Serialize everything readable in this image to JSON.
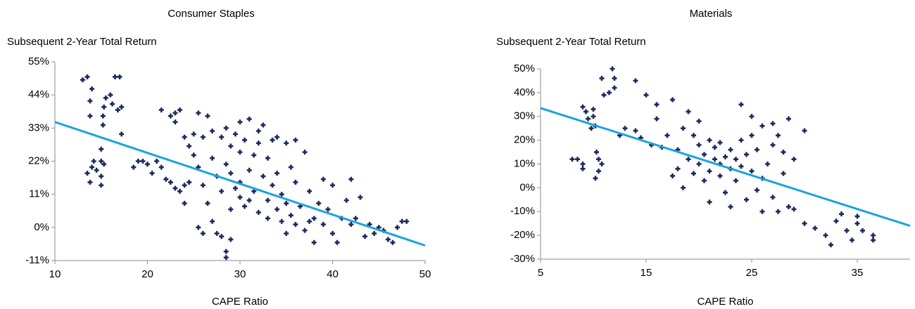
{
  "chart_data": [
    {
      "type": "scatter",
      "title": "Consumer Staples",
      "y_label": "Subsequent 2-Year Total Return",
      "x_label": "CAPE Ratio",
      "color": "#1b2a5c",
      "x": [
        13,
        13.5,
        14,
        13.8,
        13.8,
        14,
        13.5,
        13.8,
        14.5,
        15,
        15,
        15,
        15,
        15.2,
        15.2,
        15.3,
        15.5,
        16,
        16.2,
        16.5,
        17,
        16.8,
        17.2,
        17.2,
        14.2,
        15.3,
        18.5,
        19,
        19.5,
        20,
        20.5,
        21,
        21.5,
        21.5,
        22,
        22.5,
        22.5,
        23,
        23,
        23,
        23.5,
        23.5,
        24,
        24,
        24,
        24.5,
        24.5,
        25,
        25,
        25.5,
        25.5,
        25.5,
        26,
        26,
        26,
        26.5,
        26.5,
        27,
        27,
        27,
        27.5,
        27.5,
        28,
        28,
        28,
        28.5,
        28.5,
        28.5,
        28.5,
        29,
        29,
        29,
        29,
        29.5,
        29.5,
        30,
        30,
        30,
        30,
        30.5,
        30.5,
        31,
        31,
        31,
        31.5,
        31.5,
        32,
        32,
        32,
        32.5,
        32.5,
        33,
        33,
        33,
        33.5,
        33.5,
        34,
        34,
        34,
        34.5,
        34.5,
        35,
        35,
        35,
        35.5,
        35.5,
        36,
        36,
        36,
        36.5,
        37,
        37,
        37.5,
        37.5,
        38,
        38,
        38.5,
        39,
        39,
        39.5,
        40,
        40,
        40.5,
        41,
        41.5,
        42,
        42,
        42.5,
        43,
        43.5,
        44,
        44.5,
        45,
        45.5,
        46,
        47,
        47.5,
        48,
        46.5
      ],
      "y": [
        49,
        50,
        46,
        42,
        37,
        20,
        18,
        15,
        19,
        26,
        22,
        17,
        14,
        34,
        37,
        40,
        43,
        44,
        41,
        50,
        50,
        39,
        40,
        31,
        22,
        21,
        20,
        22,
        22,
        21,
        18,
        22,
        39,
        20,
        16,
        15,
        37,
        35,
        13,
        38,
        39,
        12,
        14,
        30,
        8,
        27,
        15,
        24,
        31,
        38,
        20,
        0,
        -2,
        14,
        30,
        37,
        8,
        2,
        23,
        32,
        17,
        -2,
        12,
        -3,
        30,
        -8,
        -10,
        21,
        33,
        6,
        18,
        27,
        -4,
        13,
        31,
        10,
        15,
        25,
        35,
        7,
        29,
        19,
        9,
        36,
        24,
        12,
        28,
        5,
        32,
        17,
        34,
        23,
        3,
        9,
        29,
        14,
        6,
        18,
        30,
        2,
        11,
        8,
        28,
        -2,
        4,
        20,
        15,
        1,
        29,
        7,
        25,
        -1,
        2,
        12,
        3,
        -5,
        8,
        1,
        16,
        6,
        -2,
        14,
        -5,
        3,
        9,
        16,
        1,
        3,
        10,
        -3,
        1,
        -2,
        0,
        -1,
        -4,
        0,
        2,
        2,
        -5
      ],
      "trendline": {
        "color": "#1aa3dc",
        "x": [
          10,
          50
        ],
        "y": [
          35,
          -6
        ]
      },
      "xlim": [
        10,
        50
      ],
      "ylim": [
        -11,
        55
      ],
      "xticks": [
        10,
        20,
        30,
        40,
        50
      ],
      "yticks": [
        {
          "value": -11,
          "label": "-11%"
        },
        {
          "value": 0,
          "label": "0%"
        },
        {
          "value": 11,
          "label": "11%"
        },
        {
          "value": 22,
          "label": "22%"
        },
        {
          "value": 33,
          "label": "33%"
        },
        {
          "value": 44,
          "label": "44%"
        },
        {
          "value": 55,
          "label": "55%"
        }
      ]
    },
    {
      "type": "scatter",
      "title": "Materials",
      "y_label": "Subsequent 2-Year Total Return",
      "x_label": "CAPE Ratio",
      "color": "#1b2a5c",
      "x": [
        8,
        8.5,
        9,
        9,
        9,
        9.3,
        9.5,
        9.8,
        10,
        10,
        10.2,
        10.3,
        10.5,
        10.2,
        10.5,
        10.8,
        10.8,
        11,
        11.5,
        11.8,
        12,
        12,
        12.5,
        13,
        14,
        14,
        14.5,
        15,
        15.5,
        16,
        16,
        16.5,
        17,
        17.5,
        17.5,
        18,
        18,
        18.5,
        18.5,
        19,
        19,
        19.5,
        19.5,
        20,
        20,
        20,
        20.5,
        20.5,
        21,
        21,
        21,
        21.5,
        21.5,
        22,
        22,
        22,
        22.5,
        22.5,
        23,
        23,
        23,
        23.5,
        23.5,
        24,
        24,
        24,
        24.5,
        24.5,
        25,
        25,
        25,
        25.5,
        25.5,
        26,
        26,
        26,
        26.5,
        27,
        27,
        27,
        27.5,
        27.5,
        28,
        28,
        28.5,
        28.5,
        29,
        29,
        30,
        30,
        31,
        32,
        32.5,
        33,
        33.5,
        34,
        34.5,
        35,
        35,
        35.5,
        36.5,
        36.5
      ],
      "y": [
        12,
        12,
        10,
        8,
        34,
        32,
        29,
        25,
        33,
        30,
        26,
        15,
        12,
        4,
        7,
        10,
        46,
        39,
        40,
        50,
        46,
        42,
        22,
        25,
        45,
        24,
        21,
        39,
        18,
        35,
        29,
        17,
        22,
        37,
        5,
        16,
        8,
        25,
        0,
        12,
        32,
        22,
        6,
        10,
        18,
        28,
        3,
        14,
        7,
        20,
        -6,
        12,
        17,
        5,
        10,
        19,
        -2,
        13,
        8,
        16,
        -8,
        3,
        12,
        35,
        20,
        9,
        -5,
        14,
        7,
        30,
        22,
        -1,
        16,
        26,
        4,
        -10,
        10,
        27,
        -4,
        18,
        22,
        -10,
        6,
        15,
        29,
        -8,
        12,
        -9,
        24,
        -15,
        -17,
        -20,
        -24,
        -14,
        -11,
        -18,
        -22,
        -15,
        -12,
        -18,
        -20,
        -22
      ],
      "trendline": {
        "color": "#1aa3dc",
        "x": [
          5,
          40
        ],
        "y": [
          33.5,
          -16
        ]
      },
      "xlim": [
        5,
        40
      ],
      "ylim": [
        -30,
        50
      ],
      "xticks": [
        5,
        15,
        25,
        35
      ],
      "yticks": [
        {
          "value": -30,
          "label": "-30%"
        },
        {
          "value": -20,
          "label": "-20%"
        },
        {
          "value": -10,
          "label": "-10%"
        },
        {
          "value": 0,
          "label": "0%"
        },
        {
          "value": 10,
          "label": "10%"
        },
        {
          "value": 20,
          "label": "20%"
        },
        {
          "value": 30,
          "label": "30%"
        },
        {
          "value": 40,
          "label": "40%"
        },
        {
          "value": 50,
          "label": "50%"
        }
      ]
    }
  ]
}
